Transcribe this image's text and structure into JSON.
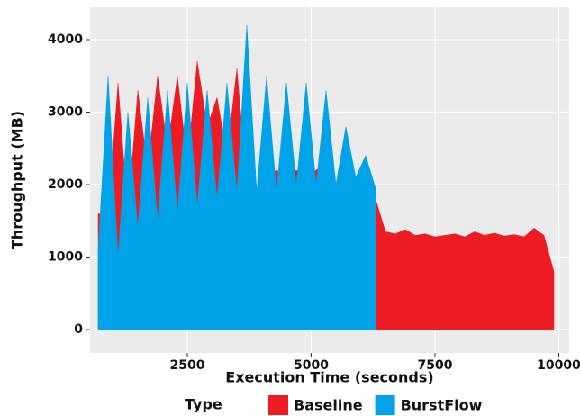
{
  "chart_data": {
    "type": "area",
    "x_label": "Execution Time (seconds)",
    "y_label": "Throughput (MB)",
    "legend_title": "Type",
    "legend": "bottom",
    "grid": true,
    "x": [
      700,
      900,
      1100,
      1300,
      1500,
      1700,
      1900,
      2100,
      2300,
      2500,
      2700,
      2900,
      3100,
      3300,
      3500,
      3700,
      3900,
      4100,
      4300,
      4500,
      4700,
      4900,
      5100,
      5300,
      5500,
      5700,
      5900,
      6100,
      6300,
      6500,
      6700,
      6900,
      7100,
      7300,
      7500,
      7700,
      7900,
      8100,
      8300,
      8500,
      8700,
      8900,
      9100,
      9300,
      9500,
      9700,
      9900
    ],
    "series": [
      {
        "name": "Baseline",
        "color": "#ed1c24",
        "values": [
          1600,
          1550,
          3400,
          1600,
          3300,
          2200,
          3500,
          2500,
          3500,
          2300,
          3700,
          2800,
          3200,
          2400,
          3600,
          2000,
          1900,
          2100,
          2200,
          2100,
          2200,
          2100,
          2200,
          2300,
          2000,
          2100,
          2100,
          1900,
          1800,
          1350,
          1320,
          1380,
          1300,
          1320,
          1280,
          1300,
          1320,
          1280,
          1350,
          1300,
          1330,
          1290,
          1310,
          1280,
          1400,
          1300,
          800
        ]
      },
      {
        "name": "BurstFlow",
        "color": "#00a2e8",
        "values": [
          1100,
          3500,
          1000,
          3000,
          1400,
          3200,
          1500,
          3300,
          1600,
          3400,
          1700,
          3300,
          1800,
          3400,
          1900,
          4200,
          1900,
          3500,
          1900,
          3400,
          2000,
          3400,
          2000,
          3300,
          2000,
          2800,
          2100,
          2400,
          1950,
          null,
          null,
          null,
          null,
          null,
          null,
          null,
          null,
          null,
          null,
          null,
          null,
          null,
          null,
          null,
          null,
          null,
          null
        ]
      }
    ],
    "xlim": [
      536,
      10209
    ],
    "ylim": [
      -323,
      4447
    ],
    "xticks": [
      2500,
      5000,
      7500,
      10000
    ],
    "yticks": [
      0,
      1000,
      2000,
      3000,
      4000
    ]
  }
}
